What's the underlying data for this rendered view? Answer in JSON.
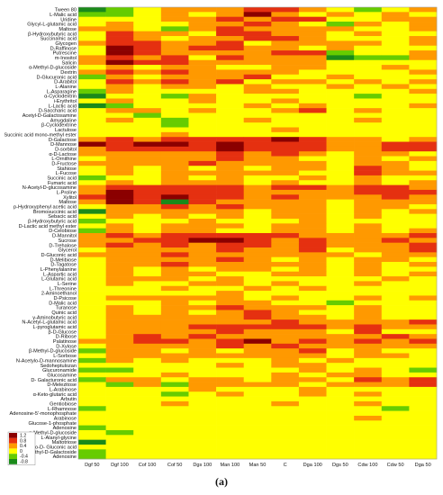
{
  "panel_label": "(a)",
  "chart_data": {
    "type": "heatmap",
    "columns": [
      "Dgf 50",
      "Dgf 100",
      "Cof 100",
      "Cof 50",
      "Dgs 100",
      "Man 100",
      "Man 50",
      "C",
      "Dga 100",
      "Dgs 50",
      "Cdw 100",
      "Cdw 50",
      "Dga 50"
    ],
    "rows": [
      "Tween 80",
      "L-Malic acid",
      "Uridine",
      "Glycyl-L-glutamic acid",
      "Maltose",
      "β-Hydroxybutyric acid",
      "Succinamic acid",
      "Glycogen",
      "D-Raffinose",
      "Putrescine",
      "m-Inositol",
      "Salicin",
      "α-Methyl-D-glucoside",
      "Dextrin",
      "D-Glucuronic acid",
      "D-Arabitol",
      "L-Alanine",
      "L-Asparagine",
      "α-Cyclodextrin",
      "i-Erythritol",
      "L-Lactic acid",
      "D-Saccharic acid",
      "Acetyl-D-Galactosamine",
      "Amygdaline",
      "β-Cyclodextrine",
      "Lactulose",
      "Succinic acid mono-methyl ester",
      "D-Galactose",
      "D-Mannose",
      "D-sorbitol",
      "α-D-Lactose",
      "L-Ornithine",
      "D-Fructose",
      "Stahiose",
      "L-Fucose",
      "Succinic acid",
      "Fumaric acid",
      "N-Acetyl-D-glucosamine",
      "L-Proline",
      "Xylitol",
      "Maltose",
      "p-Hydroxyphenyl acetic acid",
      "Bromosuccinic acid",
      "Sebacic acid",
      "β-Hydroxybutyric acid",
      "D-Lactic acid methyl ester",
      "D-Celobiose",
      "D-Mannitol",
      "Sucrose",
      "D-Trehalose",
      "Glycerol",
      "D-Gluconic acid",
      "D-Melibiose",
      "D-Tagatose",
      "L-Phenylalanine",
      "L-Aspartic acid",
      "L-Glutamic acid",
      "L-Serine",
      "L-Threonine",
      "2-Aminoethanol",
      "D-Psicose",
      "D-Malic acid",
      "Turanose",
      "Quinic acid",
      "γ-Aminobutyric acid",
      "N-Acetyl-L-glutamic acid",
      "L-pyroglutamic acid",
      "β-D-Glucose",
      "D-Ribose",
      "Palatinose",
      "D-Xylose",
      "β-Methyl-D-glucoside",
      "L-Sorbose",
      "N-Acetylo-D-mannosamine",
      "Sedoheptulozan",
      "Glucuronamide",
      "Glucosamine",
      "D- Galacturonic acid",
      "D-Melezitose",
      "L-Arabinose",
      "α-Keto-glutaric acid",
      "Arbutin",
      "Gentiobiose",
      "L-Rhamnose",
      "Adenosine-5'-monophosphate",
      "Arabinose",
      "Glucose-1-phosphate",
      "Adenosine",
      "α-Methyl-D-glucoside",
      "L-Alanyl-glycine",
      "Maltotriose",
      "α- Keto-D- Gluconic acid",
      "α- Methyl-D-Galactoside",
      "Adenosine"
    ],
    "legend": {
      "labels": [
        "1.2",
        "0.8",
        "0.4",
        "0",
        "-0.4",
        "-0.8"
      ],
      "colors": [
        "#8b0000",
        "#e53010",
        "#ff9900",
        "#ffff00",
        "#66cc00",
        "#1a8a1a"
      ]
    },
    "values": [
      [
        -0.8,
        -0.4,
        0,
        0.4,
        0.4,
        0.4,
        0.8,
        0.8,
        0.4,
        0,
        -0.4,
        0,
        0.4
      ],
      [
        -0.4,
        -0.4,
        0,
        0.4,
        0,
        0.4,
        1.2,
        0.4,
        0,
        0.4,
        0,
        0.4,
        0
      ],
      [
        0,
        0,
        0,
        0.4,
        0.4,
        0.8,
        0.4,
        0.8,
        0.8,
        0,
        0,
        0.4,
        0.4
      ],
      [
        0,
        0.4,
        0,
        0,
        0.4,
        0.4,
        0.8,
        0.4,
        0,
        -0.4,
        0.4,
        0,
        0.4
      ],
      [
        0.4,
        0.4,
        0,
        -0.4,
        0.4,
        0.8,
        0.4,
        0.4,
        0.4,
        0.4,
        0,
        0,
        0.4
      ],
      [
        0,
        0.8,
        0.4,
        0.4,
        0,
        0.8,
        0.8,
        0.4,
        0.4,
        0,
        0.4,
        0,
        0
      ],
      [
        0,
        0.8,
        0.4,
        0,
        0.4,
        0.4,
        0.8,
        0.8,
        0.4,
        0,
        0,
        0,
        0.4
      ],
      [
        0.4,
        0.8,
        0.8,
        0.4,
        0.4,
        0.8,
        0,
        0.4,
        0.4,
        0.4,
        0.4,
        0,
        0.4
      ],
      [
        0,
        1.2,
        0.8,
        0.4,
        0.8,
        0.8,
        0.4,
        0.4,
        0,
        0.4,
        0,
        0,
        0
      ],
      [
        0,
        1.2,
        0.8,
        0.4,
        0.4,
        0.4,
        0.4,
        0.8,
        0.8,
        -0.4,
        0,
        0,
        0.4
      ],
      [
        0.4,
        0.8,
        0.4,
        0.8,
        0,
        0.8,
        0.4,
        0.4,
        0.4,
        -0.8,
        -0.4,
        -0.4,
        0.4
      ],
      [
        0.4,
        1.2,
        0.8,
        0.8,
        0.4,
        0.4,
        0.4,
        0.4,
        0.4,
        0,
        0,
        0,
        0
      ],
      [
        0,
        0.4,
        0,
        0.4,
        0.4,
        0,
        0,
        0.4,
        0.4,
        0,
        0,
        0.4,
        0
      ],
      [
        0.4,
        0.8,
        0.4,
        0.8,
        0.4,
        0.4,
        0.4,
        0.4,
        0,
        0,
        0,
        0,
        0.4
      ],
      [
        -0.4,
        0.4,
        0,
        0.4,
        0.4,
        0.4,
        0.8,
        0,
        0,
        0.4,
        0,
        0,
        0
      ],
      [
        0,
        0.8,
        0.4,
        0.8,
        0.4,
        0.8,
        0,
        0.4,
        0.4,
        0,
        0.4,
        0,
        0.4
      ],
      [
        0,
        0.4,
        0,
        0.4,
        0.4,
        0,
        0.4,
        0,
        0,
        0.4,
        0,
        0.4,
        0
      ],
      [
        -0.4,
        0.4,
        0,
        0,
        0,
        0,
        0.4,
        0.4,
        0,
        0,
        0,
        0,
        0.4
      ],
      [
        -0.8,
        0,
        0,
        -0.4,
        0.4,
        0,
        0,
        0,
        0,
        0,
        -0.4,
        0,
        0
      ],
      [
        0,
        0.4,
        0,
        0,
        0.4,
        0,
        0,
        0.4,
        0,
        0,
        0,
        0,
        0
      ],
      [
        -0.8,
        -0.4,
        0,
        0,
        0,
        0,
        0.4,
        0,
        0.4,
        0,
        0,
        0,
        0.4
      ],
      [
        0,
        0.4,
        0.4,
        0,
        0.4,
        0,
        0,
        0.4,
        0.8,
        0,
        0.4,
        0,
        0
      ],
      [
        0,
        0,
        -0.4,
        0,
        0,
        0,
        0,
        0,
        0,
        0,
        0,
        0,
        0
      ],
      [
        0,
        0.4,
        0,
        -0.4,
        0,
        0,
        0.4,
        0,
        0,
        0,
        0.4,
        0,
        0
      ],
      [
        0,
        0,
        0,
        -0.4,
        0,
        0,
        0,
        0,
        0,
        0,
        0,
        0,
        0
      ],
      [
        0,
        0,
        0,
        0,
        0,
        0,
        0,
        0.4,
        0,
        0,
        0,
        0,
        0
      ],
      [
        0,
        0,
        0,
        0.4,
        0,
        0,
        0,
        0,
        0,
        0,
        0,
        0,
        0
      ],
      [
        0.4,
        0.8,
        0.4,
        0.8,
        0.8,
        0.8,
        0.8,
        1.2,
        0.8,
        0.4,
        0.4,
        0,
        0.4
      ],
      [
        1.2,
        0.8,
        1.2,
        1.2,
        0.8,
        1.2,
        0.8,
        0.8,
        0.8,
        0.4,
        0.4,
        0.8,
        0.8
      ],
      [
        0.4,
        0.8,
        0.8,
        0.8,
        0.8,
        1.2,
        0.8,
        0.8,
        0.8,
        0.4,
        0.4,
        0.8,
        0.8
      ],
      [
        0.4,
        0.4,
        0.4,
        0.4,
        0.4,
        0.8,
        0.4,
        0.8,
        0.4,
        0,
        0.4,
        0.4,
        0
      ],
      [
        0,
        0.4,
        0.4,
        0.4,
        0.4,
        0.8,
        0.4,
        0.4,
        0,
        0,
        0.4,
        0,
        0.4
      ],
      [
        0.4,
        0.4,
        0.4,
        0.4,
        0.8,
        0.4,
        0.4,
        0.4,
        0.4,
        0,
        0.4,
        0.4,
        0
      ],
      [
        0,
        0.4,
        0,
        0.4,
        0,
        0.4,
        0,
        0.4,
        0.4,
        0,
        0.8,
        0.4,
        0
      ],
      [
        0,
        0.4,
        0,
        0.4,
        0.4,
        0.4,
        0.4,
        0.4,
        0,
        0,
        0.8,
        0.4,
        0.4
      ],
      [
        -0.4,
        0,
        0,
        0.4,
        0,
        0.4,
        0,
        0,
        0.4,
        0,
        0.4,
        0,
        0
      ],
      [
        0,
        0.4,
        0,
        0.4,
        0.4,
        0.4,
        0,
        0.4,
        0,
        0,
        0.4,
        0,
        0.4
      ],
      [
        0.4,
        0.8,
        0.8,
        0.8,
        0.8,
        0.8,
        0.4,
        0.8,
        0.8,
        0.4,
        0.8,
        0.8,
        0.4
      ],
      [
        0.4,
        1.2,
        0.8,
        0.8,
        0.8,
        0.8,
        0.4,
        0.4,
        0.4,
        0.4,
        0.8,
        0.8,
        0.8
      ],
      [
        0.8,
        1.2,
        0.8,
        1.2,
        0.8,
        0.8,
        0.4,
        0.8,
        0.4,
        0.4,
        0.4,
        0.8,
        0.4
      ],
      [
        0.4,
        1.2,
        0.8,
        -0.8,
        0.8,
        0.4,
        0.4,
        0.4,
        0.4,
        0,
        0.4,
        0.4,
        0.4
      ],
      [
        0,
        0.4,
        0.4,
        0.8,
        0.4,
        0.8,
        0.4,
        0.4,
        0.4,
        0,
        0.4,
        0.4,
        0
      ],
      [
        -0.8,
        0.4,
        0.4,
        0.4,
        0.4,
        0.4,
        0,
        0.4,
        0.4,
        0,
        0.4,
        0,
        0.4
      ],
      [
        0,
        0.4,
        0,
        0.4,
        0,
        0.4,
        0,
        0.4,
        0.4,
        0,
        0.4,
        0,
        0
      ],
      [
        -0.4,
        0,
        0,
        0,
        0.4,
        0,
        0,
        0,
        0.4,
        0,
        0,
        0,
        0
      ],
      [
        0,
        0.4,
        0,
        0.4,
        0.4,
        0.4,
        0,
        0.4,
        0.4,
        0,
        0.4,
        0,
        0
      ],
      [
        -0.4,
        0.4,
        0,
        0.4,
        0.4,
        0,
        0,
        0.4,
        0.4,
        0,
        0.4,
        0,
        0.4
      ],
      [
        0.4,
        0.8,
        0.4,
        0.8,
        0.8,
        0.8,
        0.8,
        0.8,
        0.4,
        0.4,
        0.4,
        0.4,
        0.8
      ],
      [
        0.4,
        0.4,
        0.8,
        0.8,
        1.2,
        1.2,
        0.8,
        0.4,
        0.8,
        0.4,
        0.4,
        0.8,
        0.4
      ],
      [
        0.4,
        0.8,
        0.4,
        0.8,
        0.4,
        0.8,
        0.8,
        0.4,
        0.8,
        0.4,
        0.4,
        0.4,
        0.8
      ],
      [
        0,
        0.4,
        0.4,
        0.4,
        0.4,
        0.8,
        0.4,
        0.4,
        0.8,
        0,
        0.4,
        0.4,
        0.8
      ],
      [
        0.4,
        0.4,
        0.4,
        0.8,
        0.4,
        0.4,
        0.4,
        0.4,
        0.4,
        0.4,
        0,
        0.4,
        0.4
      ],
      [
        0,
        0.4,
        0.4,
        0.4,
        0.4,
        0.8,
        0.4,
        0,
        0.4,
        0,
        0.4,
        0.4,
        0
      ],
      [
        0,
        0.4,
        0.4,
        0.8,
        0.4,
        0.4,
        0.4,
        0.4,
        0.4,
        0,
        0.4,
        0,
        0.4
      ],
      [
        0,
        0.4,
        0,
        0.4,
        0,
        0.4,
        0.4,
        0,
        0.4,
        0,
        0.4,
        0,
        0
      ],
      [
        0,
        0.4,
        0,
        0.4,
        0.4,
        0,
        0,
        0.4,
        0.4,
        0,
        0.4,
        0,
        0.4
      ],
      [
        0,
        0.4,
        0.4,
        0.4,
        0,
        0.4,
        0,
        0,
        0,
        0,
        0,
        0.4,
        0
      ],
      [
        0,
        0.4,
        0,
        0,
        0.4,
        0.4,
        0,
        0.4,
        0,
        0,
        0.4,
        0,
        0
      ],
      [
        0,
        0,
        0,
        0.4,
        0,
        0,
        0.4,
        0,
        0.4,
        0,
        0,
        0,
        0
      ],
      [
        0,
        0,
        0,
        0,
        0,
        0.4,
        0,
        0,
        0,
        0,
        0,
        0,
        0
      ],
      [
        0,
        0.4,
        0.4,
        0.4,
        0.4,
        0.4,
        0,
        0.4,
        0,
        0,
        0.4,
        0,
        0.4
      ],
      [
        0,
        0,
        0,
        0.4,
        0,
        0.4,
        0.4,
        0,
        0,
        -0.4,
        0,
        0,
        0
      ],
      [
        0,
        0.4,
        0,
        0.4,
        0.4,
        0.8,
        0.4,
        0.4,
        0.4,
        0,
        0.4,
        0,
        0
      ],
      [
        0,
        0.4,
        0,
        0.4,
        0,
        0.4,
        0.8,
        0.4,
        0,
        0,
        0.4,
        0,
        0
      ],
      [
        0,
        0.4,
        0.4,
        0.4,
        0.4,
        0.4,
        0.8,
        0.4,
        0.4,
        0,
        0.4,
        0,
        0
      ],
      [
        0,
        0.4,
        0.4,
        0.4,
        0.4,
        0.4,
        0.4,
        0.8,
        0.4,
        0.4,
        0.4,
        0.4,
        0.8
      ],
      [
        0,
        0.4,
        0.4,
        0.4,
        0.8,
        0.8,
        0.8,
        0.8,
        0.8,
        0.4,
        0.8,
        0.4,
        0.4
      ],
      [
        0,
        0.4,
        0.4,
        0.4,
        0.4,
        0.8,
        0.4,
        0.4,
        0.4,
        0,
        0.8,
        0,
        0
      ],
      [
        0,
        0.4,
        0.8,
        0.4,
        0.8,
        0.4,
        0.4,
        0.4,
        0.4,
        0.4,
        0.4,
        0.8,
        0.4
      ],
      [
        0.4,
        0.4,
        0.8,
        0.8,
        0.4,
        0.8,
        1.2,
        0.4,
        0.8,
        0.4,
        0.8,
        0.4,
        0.8
      ],
      [
        0,
        0.4,
        0.4,
        0.4,
        0.4,
        0.8,
        0.4,
        0.8,
        0.4,
        0.4,
        0.4,
        0.4,
        0.4
      ],
      [
        -0.4,
        0.4,
        0.4,
        0,
        0.4,
        0,
        0.4,
        0.4,
        0.8,
        0,
        0.4,
        0,
        0
      ],
      [
        0,
        0.4,
        0.4,
        0.4,
        0.4,
        0.4,
        0.4,
        0.4,
        0.4,
        0,
        0.4,
        0.4,
        0
      ],
      [
        -0.4,
        0.4,
        0,
        0.4,
        0,
        0,
        0,
        0.4,
        0,
        0.4,
        0,
        0,
        0
      ],
      [
        0,
        0,
        0,
        0,
        0,
        0.4,
        0,
        0.4,
        0.4,
        0,
        0,
        0,
        0
      ],
      [
        -0.4,
        -0.4,
        0,
        0,
        0,
        0,
        0,
        0,
        0.4,
        0,
        0.4,
        0,
        -0.4
      ],
      [
        0,
        0,
        0,
        0.4,
        0,
        0,
        0,
        0.4,
        0,
        0.4,
        0.4,
        0,
        0
      ],
      [
        -0.4,
        0.4,
        0.4,
        0,
        0.4,
        0.4,
        0,
        0.4,
        0.4,
        0,
        0.8,
        0.4,
        0.8
      ],
      [
        0,
        -0.4,
        0.4,
        -0.4,
        0.4,
        0.4,
        0.4,
        0.4,
        0,
        0.4,
        0.4,
        0.4,
        0.8
      ],
      [
        0,
        0,
        0,
        0,
        0.4,
        0,
        0,
        0,
        0.4,
        0,
        0,
        0,
        0
      ],
      [
        0,
        0,
        0,
        -0.4,
        0,
        0.4,
        0,
        0,
        0.4,
        0,
        0.4,
        0,
        0
      ],
      [
        0,
        0,
        0,
        0,
        0,
        0,
        0,
        0,
        0,
        0,
        0,
        0,
        0
      ],
      [
        0,
        0,
        0,
        0.4,
        0,
        0,
        0,
        0.4,
        0,
        0,
        0.4,
        0,
        0
      ],
      [
        -0.4,
        0,
        0,
        0,
        0,
        0,
        0,
        0,
        0,
        0,
        0,
        -0.4,
        0
      ],
      [
        0,
        0,
        0,
        0,
        0,
        0,
        0,
        0,
        0,
        0,
        0,
        0,
        0
      ],
      [
        0,
        0,
        0,
        0,
        0,
        0,
        0,
        0,
        0,
        0,
        0.4,
        0,
        0
      ],
      [
        0,
        0,
        0,
        0,
        0,
        0,
        0,
        0,
        0,
        0,
        0,
        0,
        0
      ],
      [
        -0.4,
        0,
        0,
        0,
        0,
        0,
        0,
        0,
        0,
        0,
        0,
        0,
        0
      ],
      [
        0,
        -0.4,
        0,
        0,
        0,
        0,
        0,
        0,
        0,
        0,
        0,
        0,
        0
      ],
      [
        0,
        0,
        0,
        0,
        0,
        0,
        0,
        0,
        0,
        0,
        0,
        0,
        0
      ],
      [
        -0.8,
        0,
        0,
        0,
        0,
        0,
        0,
        0,
        0,
        0,
        0,
        0,
        0
      ],
      [
        0,
        0,
        0,
        0,
        0,
        0,
        0,
        0,
        0,
        0,
        0,
        0,
        0
      ],
      [
        -0.4,
        0,
        0,
        0,
        0,
        0,
        0,
        0,
        0,
        0,
        0,
        0,
        0
      ],
      [
        -0.4,
        0,
        0,
        0,
        0,
        0,
        0,
        0,
        0,
        0,
        0,
        0,
        0
      ]
    ]
  }
}
